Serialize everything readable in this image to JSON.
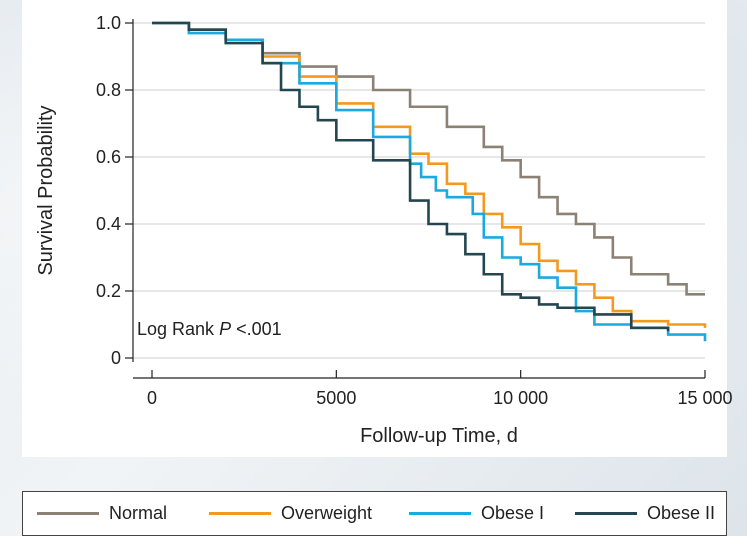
{
  "chart_data": {
    "type": "line",
    "title": "",
    "xlabel": "Follow-up Time, d",
    "ylabel": "Survival Probability",
    "xlim": [
      0,
      15000
    ],
    "ylim": [
      0,
      1.0
    ],
    "xticks": [
      0,
      5000,
      10000,
      15000
    ],
    "xtick_labels": [
      "0",
      "5000",
      "10 000",
      "15 000"
    ],
    "yticks": [
      0,
      0.2,
      0.4,
      0.6,
      0.8,
      1.0
    ],
    "ytick_labels": [
      "0",
      "0.2",
      "0.4",
      "0.6",
      "0.8",
      "1.0"
    ],
    "grid": "horizontal",
    "legend_position": "bottom",
    "annotation": {
      "prefix": "Log Rank ",
      "italic": "P",
      "suffix": " <.001"
    },
    "series": [
      {
        "name": "Normal",
        "color": "#8c8175",
        "x": [
          0,
          1000,
          2000,
          3000,
          4000,
          5000,
          6000,
          7000,
          8000,
          9000,
          9500,
          10000,
          10500,
          11000,
          11500,
          12000,
          12500,
          13000,
          14000,
          14500,
          15000
        ],
        "y": [
          1.0,
          0.98,
          0.95,
          0.91,
          0.87,
          0.84,
          0.8,
          0.75,
          0.69,
          0.63,
          0.59,
          0.54,
          0.48,
          0.43,
          0.4,
          0.36,
          0.3,
          0.25,
          0.22,
          0.19,
          0.19
        ]
      },
      {
        "name": "Overweight",
        "color": "#f39a1e",
        "x": [
          0,
          1000,
          2000,
          3000,
          4000,
          5000,
          6000,
          7000,
          7500,
          8000,
          8500,
          9000,
          9500,
          10000,
          10500,
          11000,
          11500,
          12000,
          12500,
          13000,
          14000,
          15000
        ],
        "y": [
          1.0,
          0.98,
          0.95,
          0.9,
          0.84,
          0.76,
          0.69,
          0.61,
          0.58,
          0.52,
          0.49,
          0.43,
          0.39,
          0.34,
          0.29,
          0.26,
          0.22,
          0.18,
          0.14,
          0.11,
          0.1,
          0.09
        ]
      },
      {
        "name": "Obese I",
        "color": "#1aa9e1",
        "x": [
          0,
          1000,
          2000,
          3000,
          4000,
          5000,
          6000,
          7000,
          7300,
          7700,
          8000,
          8700,
          9000,
          9500,
          10000,
          10500,
          11000,
          11500,
          12000,
          13000,
          14000,
          15000
        ],
        "y": [
          1.0,
          0.97,
          0.95,
          0.88,
          0.82,
          0.74,
          0.66,
          0.58,
          0.54,
          0.5,
          0.48,
          0.43,
          0.36,
          0.3,
          0.28,
          0.24,
          0.21,
          0.14,
          0.1,
          0.09,
          0.07,
          0.05
        ]
      },
      {
        "name": "Obese II",
        "color": "#234650",
        "x": [
          0,
          1000,
          2000,
          3000,
          3500,
          4000,
          4500,
          5000,
          6000,
          7000,
          7500,
          8000,
          8500,
          9000,
          9500,
          10000,
          10500,
          11000,
          12000,
          13000,
          14000
        ],
        "y": [
          1.0,
          0.98,
          0.94,
          0.88,
          0.8,
          0.75,
          0.71,
          0.65,
          0.59,
          0.47,
          0.4,
          0.37,
          0.31,
          0.25,
          0.19,
          0.18,
          0.16,
          0.15,
          0.13,
          0.09,
          0.08
        ]
      }
    ]
  }
}
